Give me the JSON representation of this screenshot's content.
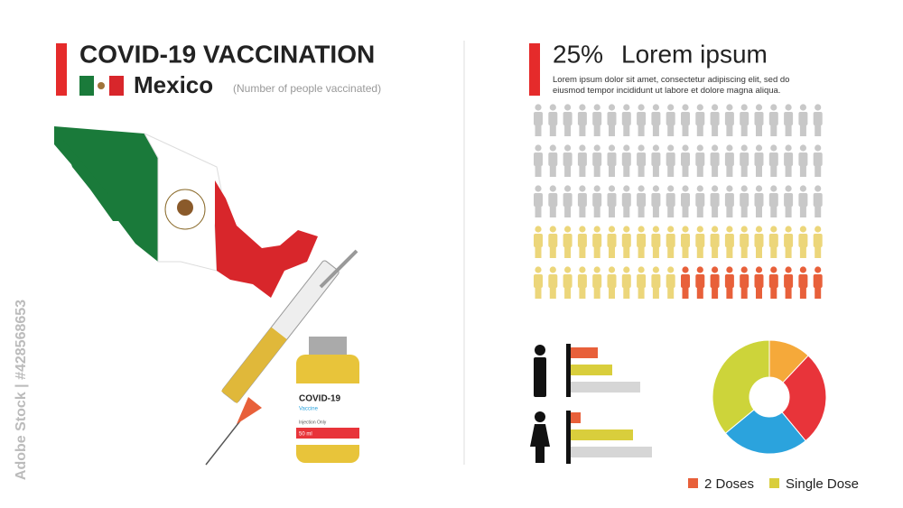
{
  "header": {
    "title": "COVID-19 VACCINATION",
    "country": "Mexico",
    "note": "(Number of people vaccinated)"
  },
  "vial": {
    "label": "COVID-19",
    "sub": "Vaccine",
    "note": "Injection Only",
    "volume": "50 ml"
  },
  "headline": {
    "percent": "25%",
    "title": "Lorem ipsum",
    "body": "Lorem ipsum dolor sit amet, consectetur adipiscing elit, sed do eiusmod tempor incididunt ut labore et dolore magna aliqua."
  },
  "watermark": "Adobe Stock | #428568653",
  "chart_data": [
    {
      "type": "pictogram",
      "values": [
        60,
        30,
        10
      ],
      "colors": [
        "#c8c8c8",
        "#ecd67a",
        "#e8603a"
      ]
    },
    {
      "type": "bar",
      "orientation": "horizontal",
      "categories": [
        null,
        null
      ],
      "series": [
        {
          "name": "2 Doses",
          "color": "#e8603a",
          "values": [
            30,
            11
          ]
        },
        {
          "name": "Single Dose",
          "color": "#d9ce3c",
          "values": [
            46,
            69
          ]
        },
        {
          "color": "#d6d6d6",
          "values": [
            77,
            90
          ]
        }
      ]
    },
    {
      "type": "pie",
      "donut": true,
      "values": [
        12,
        27,
        25,
        36
      ],
      "colors": [
        "#f5a93a",
        "#e8343a",
        "#2ba3dd",
        "#cdd43a"
      ]
    }
  ]
}
